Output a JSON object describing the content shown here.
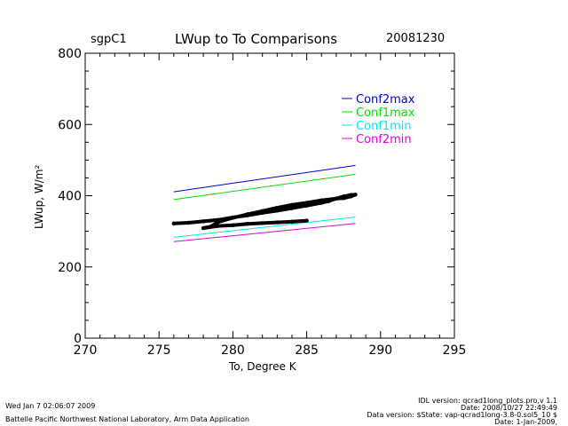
{
  "header": {
    "site": "sgpC1",
    "title": "LWup to To Comparisons",
    "date": "20081230"
  },
  "footer": {
    "timestamp": "Wed Jan  7 02:06:07 2009",
    "lab": "Battelle Pacific Northwest National Laboratory, Arm Data Application",
    "idl_version": "IDL version: qcrad1long_plots.pro,v 1.1",
    "idl_date": "Date: 2008/10/27 22:49:49",
    "data_version": "Data version: $State: vap-qcrad1long-3.8-0.sol5_10 $",
    "data_date": "Date: 1-Jan-2009,"
  },
  "chart_data": {
    "type": "line",
    "title": "LWup to To Comparisons",
    "xlabel": "To, Degree K",
    "ylabel": "LWup, W/m²",
    "xlim": [
      270,
      295
    ],
    "ylim": [
      0,
      800
    ],
    "x_ticks": [
      270,
      275,
      280,
      285,
      290,
      295
    ],
    "y_ticks": [
      0,
      200,
      400,
      600,
      800
    ],
    "grid": false,
    "legend_position": "top-right",
    "series": [
      {
        "name": "Conf2max",
        "color": "#0000c8",
        "x": [
          276,
          288.3
        ],
        "y": [
          411,
          485
        ]
      },
      {
        "name": "Conf1max",
        "color": "#00e000",
        "x": [
          276,
          288.3
        ],
        "y": [
          389,
          460
        ]
      },
      {
        "name": "Conf1min",
        "color": "#00e8e8",
        "x": [
          276,
          288.3
        ],
        "y": [
          283,
          340
        ]
      },
      {
        "name": "Conf2min",
        "color": "#e000e0",
        "x": [
          276,
          288.3
        ],
        "y": [
          271,
          322
        ]
      }
    ],
    "observations": {
      "color": "#000000",
      "x": [
        276.0,
        277.0,
        278.0,
        279.0,
        280.0,
        281.0,
        282.0,
        283.0,
        284.0,
        285.0,
        286.0,
        286.5,
        287.0,
        287.5,
        288.0,
        288.3,
        288.0,
        287.5,
        287.0,
        286.0,
        285.0,
        284.0,
        283.0,
        282.0,
        281.0,
        280.0,
        279.0,
        278.5,
        278.0,
        279.0,
        280.0,
        281.0,
        282.0,
        283.0,
        284.0,
        285.0
      ],
      "y": [
        322,
        324,
        328,
        332,
        339,
        345,
        352,
        358,
        365,
        372,
        380,
        385,
        392,
        398,
        402,
        403,
        398,
        393,
        392,
        387,
        380,
        374,
        366,
        357,
        348,
        338,
        326,
        313,
        309,
        315,
        317,
        321,
        323,
        325,
        327,
        330
      ]
    }
  }
}
